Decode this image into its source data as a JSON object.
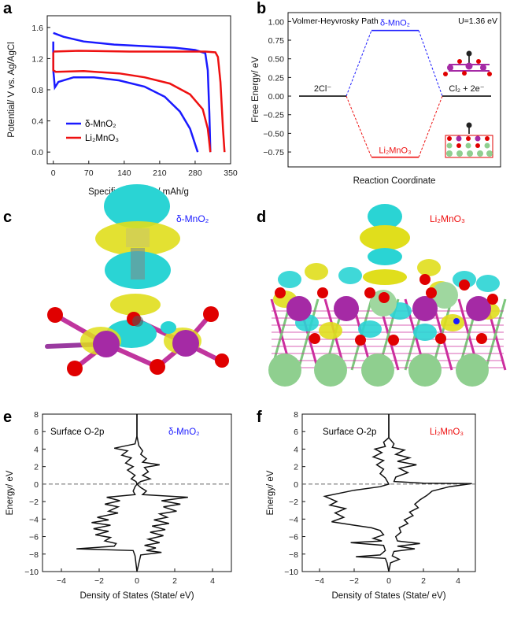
{
  "panels": {
    "a": "a",
    "b": "b",
    "c": "c",
    "d": "d",
    "e": "e",
    "f": "f"
  },
  "colors": {
    "blue": "#1a1aff",
    "red": "#ee1111",
    "black": "#111111",
    "cyan": "#2ad4d4",
    "yellow": "#e6e600",
    "oxygen": "#e00000",
    "manganese": "#a52aa5",
    "lithium": "#8fcf8f"
  },
  "panel_c_label": "δ-MnO₂",
  "panel_d_label": "Li₂MnO₃",
  "chart_data": [
    {
      "panel": "a",
      "type": "line",
      "xlabel": "Specific Capacity/ mAh/g",
      "ylabel": "Potential/ V vs. Ag/AgCl",
      "xlim": [
        -12,
        350
      ],
      "ylim": [
        -0.15,
        1.75
      ],
      "xticks": [
        "0",
        "70",
        "140",
        "210",
        "280",
        "350"
      ],
      "xtick_values": [
        0,
        70,
        140,
        210,
        280,
        350
      ],
      "yticks": [
        "0.0",
        "0.4",
        "0.8",
        "1.2",
        "1.6"
      ],
      "ytick_values": [
        0,
        0.4,
        0.8,
        1.2,
        1.6
      ],
      "legend_position": "lower-left",
      "series": [
        {
          "name": "δ-MnO₂",
          "color": "#1a1aff",
          "charge": [
            [
              0,
              1.53
            ],
            [
              20,
              1.48
            ],
            [
              60,
              1.42
            ],
            [
              120,
              1.38
            ],
            [
              180,
              1.36
            ],
            [
              240,
              1.34
            ],
            [
              280,
              1.31
            ],
            [
              300,
              1.27
            ],
            [
              305,
              1.05
            ],
            [
              308,
              0.5
            ],
            [
              310,
              0.0
            ]
          ],
          "discharge": [
            [
              0,
              1.42
            ],
            [
              0,
              1.05
            ],
            [
              3,
              0.83
            ],
            [
              10,
              0.9
            ],
            [
              40,
              0.96
            ],
            [
              80,
              0.96
            ],
            [
              130,
              0.92
            ],
            [
              180,
              0.84
            ],
            [
              220,
              0.71
            ],
            [
              250,
              0.52
            ],
            [
              270,
              0.3
            ],
            [
              285,
              0.0
            ]
          ]
        },
        {
          "name": "Li₂MnO₃",
          "color": "#ee1111",
          "charge": [
            [
              0,
              1.29
            ],
            [
              50,
              1.3
            ],
            [
              150,
              1.29
            ],
            [
              250,
              1.29
            ],
            [
              300,
              1.29
            ],
            [
              320,
              1.28
            ],
            [
              325,
              1.22
            ],
            [
              330,
              0.9
            ],
            [
              335,
              0.3
            ],
            [
              338,
              0.0
            ]
          ],
          "discharge": [
            [
              0,
              1.28
            ],
            [
              0,
              1.05
            ],
            [
              5,
              1.03
            ],
            [
              60,
              1.04
            ],
            [
              130,
              1.01
            ],
            [
              180,
              0.96
            ],
            [
              230,
              0.88
            ],
            [
              270,
              0.74
            ],
            [
              295,
              0.55
            ],
            [
              305,
              0.3
            ],
            [
              310,
              0.0
            ]
          ]
        }
      ]
    },
    {
      "panel": "b",
      "type": "line",
      "title": "Volmer-Heyvrosky Path",
      "annotation": "U=1.36 eV",
      "xlabel": "Reaction Coordinate",
      "ylabel": "Free Energy/ eV",
      "ylim": [
        -0.95,
        1.12
      ],
      "yticks": [
        "−0.75",
        "−0.50",
        "−0.25",
        "0.00",
        "0.25",
        "0.50",
        "0.75",
        "1.00"
      ],
      "ytick_values": [
        -0.75,
        -0.5,
        -0.25,
        0,
        0.25,
        0.5,
        0.75,
        1.0
      ],
      "levels": [
        {
          "label": "2Cl⁻",
          "value": 0.0,
          "color": "#111111"
        },
        {
          "label": "δ-MnO₂",
          "value": 0.88,
          "color": "#1a1aff"
        },
        {
          "label": "Li₂MnO₃",
          "value": -0.82,
          "color": "#ee1111"
        },
        {
          "label": "Cl₂ + 2e⁻",
          "value": 0.0,
          "color": "#111111"
        }
      ]
    },
    {
      "panel": "e",
      "type": "line",
      "title": "Surface O-2p",
      "label": "δ-MnO₂",
      "xlabel": "Density of States (State/ eV)",
      "ylabel": "Energy/ eV",
      "xlim": [
        -5,
        5
      ],
      "ylim": [
        -10,
        8
      ],
      "xticks": [
        "−4",
        "−2",
        "0",
        "2",
        "4"
      ],
      "xtick_values": [
        -4,
        -2,
        0,
        2,
        4
      ],
      "yticks": [
        "−10",
        "−8",
        "−6",
        "−4",
        "−2",
        "0",
        "2",
        "4",
        "6",
        "8"
      ],
      "ytick_values": [
        -10,
        -8,
        -6,
        -4,
        -2,
        0,
        2,
        4,
        6,
        8
      ],
      "fermi_level": 0,
      "dos": [
        [
          0,
          8
        ],
        [
          0,
          5.5
        ],
        [
          -0.1,
          4.6
        ],
        [
          -1.2,
          4.1
        ],
        [
          -0.5,
          3.8
        ],
        [
          -0.8,
          3.3
        ],
        [
          -0.3,
          3.0
        ],
        [
          -0.6,
          2.4
        ],
        [
          -0.2,
          2.0
        ],
        [
          -0.5,
          1.6
        ],
        [
          -0.1,
          1.0
        ],
        [
          -0.3,
          0.6
        ],
        [
          -0.05,
          0.3
        ],
        [
          0,
          0
        ],
        [
          -0.1,
          -0.3
        ],
        [
          -0.2,
          -0.8
        ],
        [
          -0.1,
          -1.2
        ],
        [
          -1.6,
          -1.5
        ],
        [
          -0.9,
          -1.9
        ],
        [
          -1.7,
          -2.3
        ],
        [
          -1.0,
          -2.6
        ],
        [
          -1.5,
          -3.1
        ],
        [
          -1.0,
          -3.3
        ],
        [
          -2.1,
          -3.8
        ],
        [
          -1.5,
          -4.1
        ],
        [
          -2.4,
          -4.4
        ],
        [
          -1.4,
          -4.7
        ],
        [
          -2.3,
          -5.1
        ],
        [
          -1.5,
          -5.4
        ],
        [
          -2.2,
          -5.8
        ],
        [
          -1.4,
          -6.1
        ],
        [
          -1.7,
          -6.5
        ],
        [
          -1.1,
          -6.8
        ],
        [
          -1.2,
          -7.1
        ],
        [
          -3.2,
          -7.4
        ],
        [
          -0.2,
          -7.6
        ],
        [
          -0.1,
          -8.2
        ],
        [
          0,
          -10
        ]
      ],
      "dos_up": [
        [
          0,
          8
        ],
        [
          0,
          5.5
        ],
        [
          0.1,
          4.4
        ],
        [
          0.3,
          3.8
        ],
        [
          0.2,
          3.4
        ],
        [
          0.5,
          2.9
        ],
        [
          0.3,
          2.5
        ],
        [
          1.2,
          2.2
        ],
        [
          0.4,
          1.9
        ],
        [
          0.6,
          1.4
        ],
        [
          0.3,
          1.0
        ],
        [
          0.7,
          0.6
        ],
        [
          0.2,
          0.3
        ],
        [
          0,
          0
        ],
        [
          0.2,
          -0.4
        ],
        [
          0.5,
          -0.8
        ],
        [
          0.3,
          -1.2
        ],
        [
          2.7,
          -1.5
        ],
        [
          1.3,
          -1.9
        ],
        [
          2.3,
          -2.3
        ],
        [
          1.4,
          -2.6
        ],
        [
          2.1,
          -3.1
        ],
        [
          1.2,
          -3.4
        ],
        [
          1.6,
          -3.8
        ],
        [
          0.9,
          -4.1
        ],
        [
          1.7,
          -4.5
        ],
        [
          0.8,
          -4.8
        ],
        [
          1.5,
          -5.2
        ],
        [
          0.7,
          -5.5
        ],
        [
          1.4,
          -5.9
        ],
        [
          0.6,
          -6.3
        ],
        [
          1.2,
          -6.7
        ],
        [
          0.4,
          -7.0
        ],
        [
          1.0,
          -7.3
        ],
        [
          0.5,
          -7.6
        ],
        [
          1.3,
          -7.8
        ],
        [
          0.2,
          -8.1
        ],
        [
          0,
          -10
        ]
      ]
    },
    {
      "panel": "f",
      "type": "line",
      "title": "Surface O-2p",
      "label": "Li₂MnO₃",
      "xlabel": "Density of States (State/ eV)",
      "ylabel": "Energy/ eV",
      "xlim": [
        -5,
        5
      ],
      "ylim": [
        -10,
        8
      ],
      "xticks": [
        "−4",
        "−2",
        "0",
        "2",
        "4"
      ],
      "xtick_values": [
        -4,
        -2,
        0,
        2,
        4
      ],
      "yticks": [
        "−10",
        "−8",
        "−6",
        "−4",
        "−2",
        "0",
        "2",
        "4",
        "6",
        "8"
      ],
      "ytick_values": [
        -10,
        -8,
        -6,
        -4,
        -2,
        0,
        2,
        4,
        6,
        8
      ],
      "fermi_level": 0,
      "dos": [
        [
          0,
          8
        ],
        [
          0,
          5.3
        ],
        [
          -0.3,
          4.8
        ],
        [
          -0.2,
          4.3
        ],
        [
          -0.8,
          4.0
        ],
        [
          -0.4,
          3.6
        ],
        [
          -0.9,
          3.1
        ],
        [
          -0.3,
          2.7
        ],
        [
          -0.7,
          2.2
        ],
        [
          -0.3,
          1.7
        ],
        [
          -0.5,
          1.2
        ],
        [
          -0.2,
          0.7
        ],
        [
          0,
          0
        ],
        [
          -0.5,
          -0.3
        ],
        [
          -2.0,
          -0.7
        ],
        [
          -3.7,
          -1.4
        ],
        [
          -3.0,
          -2.0
        ],
        [
          -3.4,
          -2.4
        ],
        [
          -2.5,
          -2.8
        ],
        [
          -3.1,
          -3.3
        ],
        [
          -2.6,
          -3.8
        ],
        [
          -3.3,
          -4.3
        ],
        [
          -2.0,
          -4.7
        ],
        [
          -1.0,
          -5.0
        ],
        [
          -0.5,
          -5.3
        ],
        [
          -0.3,
          -5.8
        ],
        [
          -0.9,
          -6.2
        ],
        [
          -0.4,
          -6.5
        ],
        [
          -2.2,
          -6.7
        ],
        [
          -0.3,
          -7.0
        ],
        [
          -0.2,
          -7.6
        ],
        [
          -0.5,
          -8.1
        ],
        [
          -1.9,
          -8.3
        ],
        [
          -0.2,
          -8.5
        ],
        [
          -0.1,
          -9.0
        ],
        [
          0,
          -10
        ]
      ],
      "dos_up": [
        [
          0,
          8
        ],
        [
          0,
          5.3
        ],
        [
          0.3,
          4.6
        ],
        [
          0.2,
          4.2
        ],
        [
          0.9,
          3.9
        ],
        [
          0.4,
          3.4
        ],
        [
          1.2,
          3.0
        ],
        [
          0.5,
          2.6
        ],
        [
          1.6,
          2.2
        ],
        [
          0.6,
          1.8
        ],
        [
          1.1,
          1.3
        ],
        [
          0.4,
          0.8
        ],
        [
          0.3,
          0.3
        ],
        [
          2.0,
          0.1
        ],
        [
          4.8,
          0.05
        ],
        [
          3.5,
          -0.3
        ],
        [
          2.5,
          -0.8
        ],
        [
          2.2,
          -1.3
        ],
        [
          1.8,
          -1.8
        ],
        [
          1.5,
          -2.3
        ],
        [
          1.7,
          -2.7
        ],
        [
          1.2,
          -3.2
        ],
        [
          1.4,
          -3.6
        ],
        [
          0.9,
          -4.1
        ],
        [
          1.1,
          -4.5
        ],
        [
          0.6,
          -5.0
        ],
        [
          0.7,
          -5.5
        ],
        [
          0.4,
          -6.0
        ],
        [
          0.5,
          -6.5
        ],
        [
          1.8,
          -6.8
        ],
        [
          0.5,
          -7.1
        ],
        [
          1.5,
          -7.4
        ],
        [
          0.3,
          -7.7
        ],
        [
          0.2,
          -8.2
        ],
        [
          0.6,
          -8.6
        ],
        [
          0.1,
          -9.0
        ],
        [
          0,
          -10
        ]
      ]
    }
  ]
}
